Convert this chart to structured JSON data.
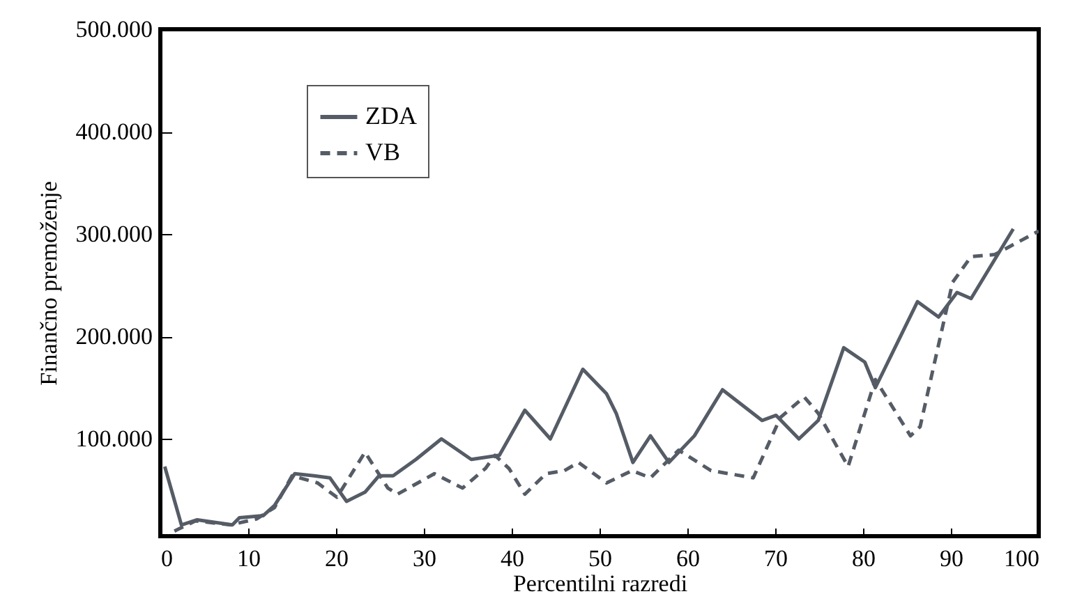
{
  "chart_data": {
    "type": "line",
    "xlabel": "Percentilni razredi",
    "ylabel": "Finančno premoženje",
    "xlim": [
      0,
      100
    ],
    "xticks": [
      0,
      10,
      20,
      30,
      40,
      50,
      60,
      70,
      80,
      90,
      100
    ],
    "ylim": [
      5000,
      500000
    ],
    "yticks": [
      {
        "value": 100000,
        "label": "100.000"
      },
      {
        "value": 200000,
        "label": "200.000"
      },
      {
        "value": 300000,
        "label": "300.000"
      },
      {
        "value": 400000,
        "label": "400.000"
      },
      {
        "value": 500000,
        "label": "500.000"
      }
    ],
    "grid": false,
    "legend": "top left",
    "series": [
      {
        "name": "ZDA",
        "color": "#555c66",
        "line_style": "solid",
        "x": [
          0.5,
          2.4,
          4.2,
          8.2,
          9,
          11.7,
          13,
          15.3,
          17.5,
          19.3,
          21.2,
          23.3,
          24.9,
          26.5,
          29.1,
          32,
          35.4,
          38.6,
          41.5,
          44.4,
          48.1,
          50.8,
          51.9,
          53.8,
          55.8,
          57.9,
          60.8,
          64,
          68.5,
          70.1,
          72.7,
          74.9,
          77.8,
          80.2,
          81.4,
          86.2,
          88.6,
          90.7,
          92.3,
          97.1
        ],
        "values": [
          73000,
          16000,
          21000,
          16000,
          23000,
          25000,
          35000,
          66000,
          64000,
          62000,
          39000,
          48000,
          64000,
          64000,
          80000,
          100000,
          80000,
          84000,
          128000,
          100000,
          168000,
          144000,
          125000,
          77000,
          103000,
          77000,
          103000,
          148000,
          118000,
          123000,
          100000,
          118000,
          189000,
          175000,
          150000,
          234000,
          219000,
          243000,
          237000,
          305000
        ]
      },
      {
        "name": "VB",
        "color": "#555c66",
        "line_style": "dashed",
        "x": [
          1.6,
          4,
          8,
          11,
          13,
          15,
          17.9,
          20.1,
          23.3,
          25.9,
          27,
          31.2,
          34.4,
          37,
          38.1,
          39.7,
          41.5,
          43.9,
          46,
          47.6,
          50.8,
          53.7,
          55.8,
          59,
          62.7,
          67.5,
          70.6,
          73.3,
          74.9,
          78.3,
          81.4,
          85.4,
          86.5,
          90.2,
          92.3,
          95,
          100
        ],
        "values": [
          10000,
          20000,
          16000,
          22000,
          33000,
          64000,
          57000,
          43000,
          87000,
          52000,
          46000,
          66000,
          52000,
          71000,
          84000,
          71000,
          46000,
          66000,
          69000,
          77000,
          57000,
          69000,
          62000,
          89000,
          69000,
          62000,
          121000,
          141000,
          125000,
          73000,
          158000,
          103000,
          112000,
          253000,
          278000,
          280000,
          303000
        ]
      }
    ]
  }
}
